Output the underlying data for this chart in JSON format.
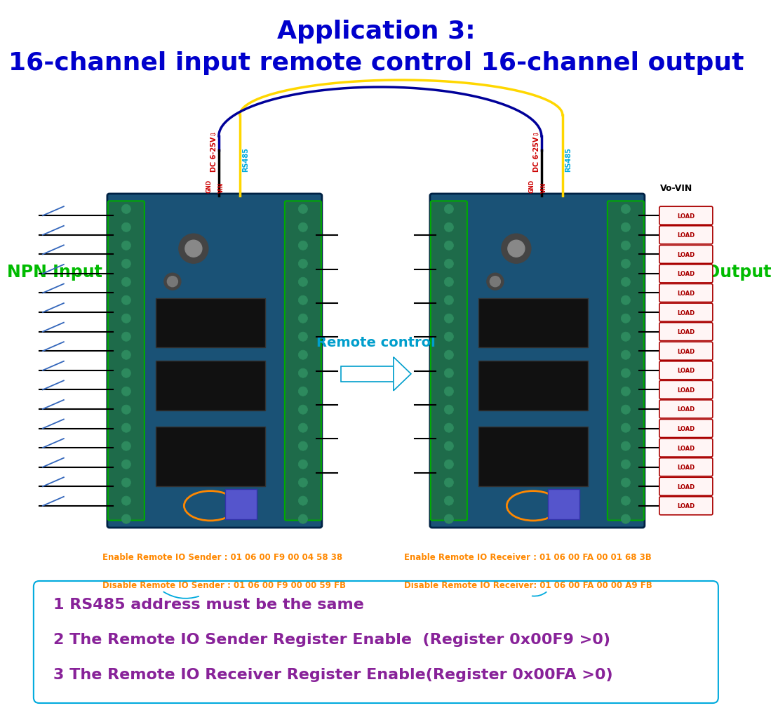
{
  "title_line1": "Application 3:",
  "title_line2": "16-channel input remote control 16-channel output",
  "title_color": "#0000CC",
  "title_fontsize1": 26,
  "title_fontsize2": 26,
  "bg_color": "#FFFFFF",
  "board_color": "#1a5276",
  "npn_input_label": "NPN Input",
  "npn_input_color": "#00BB00",
  "npn_output_label": "NPN Output",
  "npn_output_color": "#00BB00",
  "remote_control_label": "Remote control",
  "remote_control_color": "#009ECC",
  "dc_label": "DC 6-25V⇩",
  "dc_color": "#CC0000",
  "rs485_label": "RS485",
  "rs485_color": "#00AADD",
  "power_color": "#CC0000",
  "vo_vin_label": "Vo-VIN",
  "load_color": "#AA0000",
  "load_label": "LOAD",
  "num_loads": 16,
  "wire_yellow_color": "#FFD700",
  "wire_blue_color": "#000099",
  "connector_green": "#00AA00",
  "enable_sender": "Enable Remote IO Sender : 01 06 00 F9 00 04 58 38",
  "disable_sender": "Disable Remote IO Sender : 01 06 00 F9 00 00 59 FB",
  "enable_receiver": "Enable Remote IO Receiver : 01 06 00 FA 00 01 68 3B",
  "disable_receiver": "Disable Remote IO Receiver: 01 06 00 FA 00 00 A9 FB",
  "code_color": "#FF8800",
  "note1": "1 RS485 address must be the same",
  "note2": "2 The Remote IO Sender Register Enable  (Register 0x00F9 >0)",
  "note3": "3 The Remote IO Receiver Register Enable(Register 0x00FA >0)",
  "note_color": "#882299",
  "note_fontsize": 16,
  "cyan_box_color": "#00AADD",
  "lbx": 0.12,
  "lby": 0.26,
  "lbw": 0.3,
  "lbh": 0.47,
  "rbx": 0.58,
  "rby": 0.26,
  "rbw": 0.3,
  "rbh": 0.47
}
